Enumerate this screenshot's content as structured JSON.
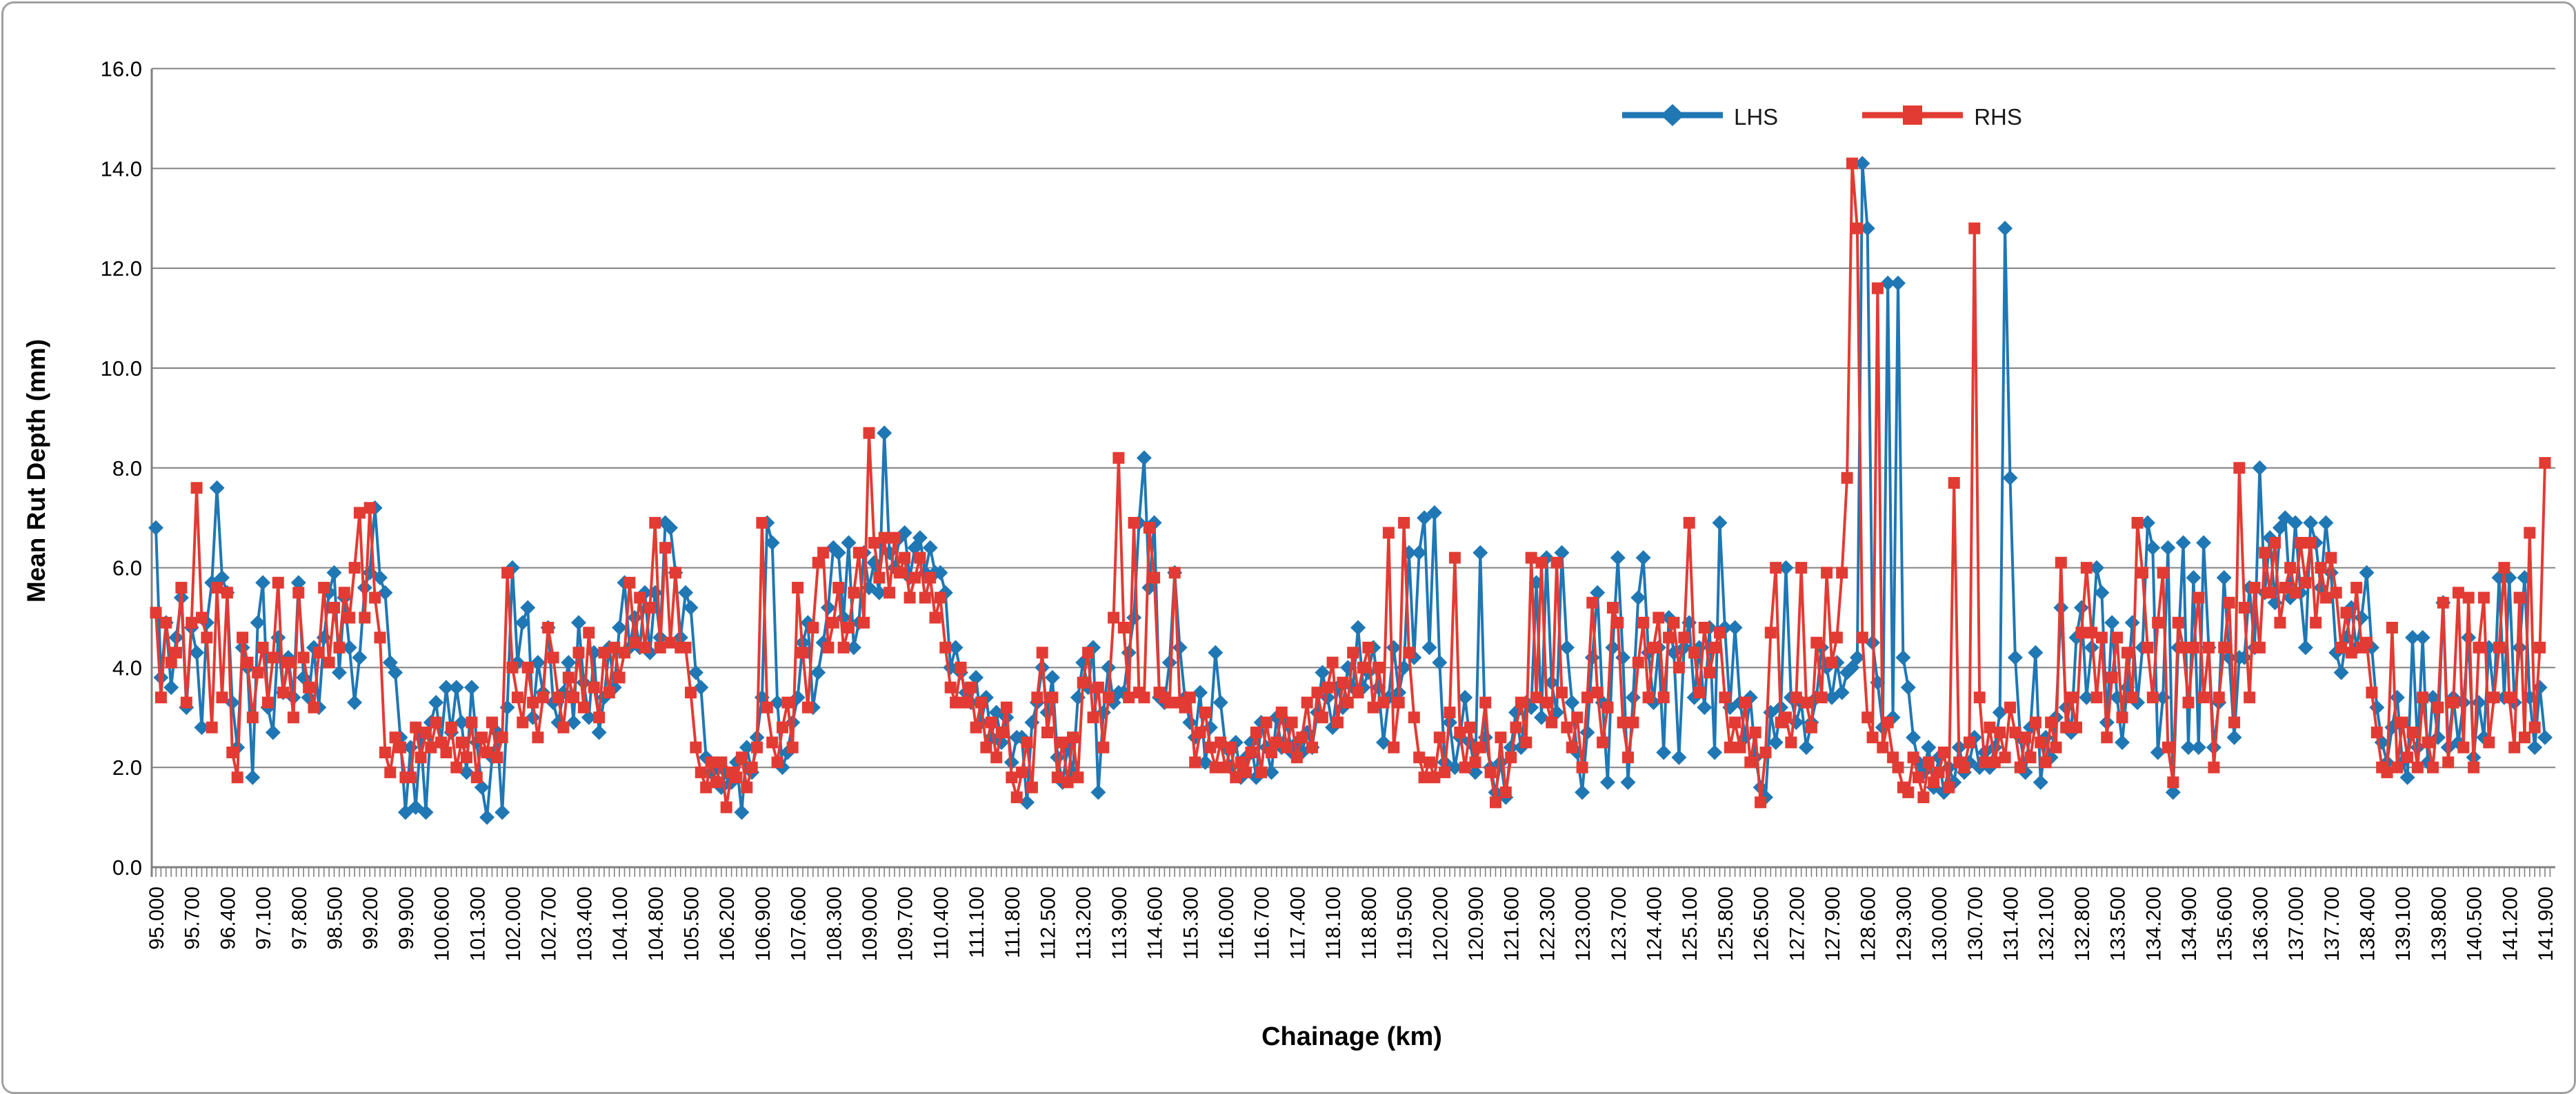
{
  "chart_data": {
    "type": "line",
    "title": "",
    "xlabel": "Chainage (km)",
    "ylabel": "Mean Rut Depth (mm)",
    "x_start": 95.0,
    "x_step": 0.1,
    "n_points": 470,
    "xlim": [
      95.0,
      141.9
    ],
    "ylim": [
      0.0,
      16.0
    ],
    "grid": "horizontal",
    "legend_position": "top-center",
    "y_tick_labels": [
      "0.0",
      "2.0",
      "4.0",
      "6.0",
      "8.0",
      "10.0",
      "12.0",
      "14.0",
      "16.0"
    ],
    "x_tick_labels": [
      "95.000",
      "95.700",
      "96.400",
      "97.100",
      "97.800",
      "98.500",
      "99.200",
      "99.900",
      "100.600",
      "101.300",
      "102.000",
      "102.700",
      "103.400",
      "104.100",
      "104.800",
      "105.500",
      "106.200",
      "106.900",
      "107.600",
      "108.300",
      "109.000",
      "109.700",
      "110.400",
      "111.100",
      "111.800",
      "112.500",
      "113.200",
      "113.900",
      "114.600",
      "115.300",
      "116.000",
      "116.700",
      "117.400",
      "118.100",
      "118.800",
      "119.500",
      "120.200",
      "120.900",
      "121.600",
      "122.300",
      "123.000",
      "123.700",
      "124.400",
      "125.100",
      "125.800",
      "126.500",
      "127.200",
      "127.900",
      "128.600",
      "129.300",
      "130.000",
      "130.700",
      "131.400",
      "132.100",
      "132.800",
      "133.500",
      "134.200",
      "134.900",
      "135.600",
      "136.300",
      "137.000",
      "137.700",
      "138.400",
      "139.100",
      "139.800",
      "140.500",
      "141.200",
      "141.900"
    ],
    "series": [
      {
        "name": "LHS",
        "color": "#1F77B4",
        "marker": "diamond",
        "values": [
          6.8,
          3.8,
          4.9,
          3.6,
          4.6,
          5.4,
          3.2,
          4.8,
          4.3,
          2.8,
          4.9,
          5.7,
          7.6,
          5.8,
          5.5,
          3.3,
          2.4,
          4.4,
          4.0,
          1.8,
          4.9,
          5.7,
          3.2,
          2.7,
          4.6,
          3.5,
          4.2,
          3.4,
          5.7,
          3.8,
          3.4,
          4.4,
          3.2,
          4.6,
          5.5,
          5.9,
          3.9,
          5.4,
          4.4,
          3.3,
          4.2,
          5.6,
          5.9,
          7.2,
          5.8,
          5.5,
          4.1,
          3.9,
          2.6,
          1.1,
          2.4,
          1.2,
          2.6,
          1.1,
          2.9,
          3.3,
          2.5,
          3.6,
          2.7,
          3.6,
          2.9,
          1.9,
          3.6,
          2.5,
          1.6,
          1.0,
          2.2,
          2.7,
          1.1,
          3.2,
          6.0,
          4.1,
          4.9,
          5.2,
          3.0,
          4.1,
          3.5,
          4.8,
          3.3,
          2.9,
          3.5,
          4.1,
          2.9,
          4.9,
          3.7,
          3.0,
          4.3,
          2.7,
          3.4,
          4.4,
          3.6,
          4.8,
          5.7,
          4.4,
          5.0,
          4.4,
          5.5,
          4.3,
          5.5,
          4.6,
          6.9,
          6.8,
          5.9,
          4.6,
          5.5,
          5.2,
          3.9,
          3.6,
          2.2,
          1.9,
          2.0,
          1.6,
          1.9,
          1.7,
          2.1,
          1.1,
          2.4,
          1.9,
          2.6,
          3.4,
          6.9,
          6.5,
          3.3,
          2.0,
          2.3,
          2.9,
          3.4,
          4.5,
          4.9,
          3.2,
          3.9,
          4.5,
          5.2,
          6.4,
          6.3,
          5.0,
          6.5,
          4.4,
          4.9,
          6.3,
          5.6,
          6.1,
          5.5,
          8.7,
          6.3,
          6.0,
          6.6,
          6.7,
          5.8,
          6.4,
          6.6,
          5.9,
          6.4,
          5.9,
          5.9,
          5.5,
          4.0,
          4.4,
          3.9,
          3.5,
          3.3,
          3.8,
          2.9,
          3.4,
          2.6,
          3.1,
          2.5,
          3.0,
          2.1,
          2.6,
          2.6,
          1.3,
          2.9,
          3.3,
          4.0,
          3.1,
          3.8,
          2.2,
          1.7,
          2.4,
          1.9,
          3.4,
          4.1,
          3.6,
          4.4,
          1.5,
          3.1,
          4.0,
          3.3,
          3.5,
          3.5,
          4.3,
          5.0,
          6.9,
          8.2,
          5.6,
          6.9,
          3.4,
          3.3,
          4.1,
          5.9,
          4.4,
          3.4,
          2.9,
          2.6,
          3.5,
          2.1,
          2.8,
          4.3,
          3.3,
          2.4,
          2.0,
          2.5,
          1.8,
          2.2,
          2.5,
          1.8,
          2.9,
          2.4,
          1.9,
          3.0,
          2.4,
          2.9,
          2.3,
          2.5,
          2.3,
          2.7,
          2.4,
          3.1,
          3.9,
          3.4,
          2.8,
          3.6,
          3.2,
          4.0,
          3.6,
          4.8,
          3.6,
          3.9,
          4.4,
          3.6,
          2.5,
          3.4,
          4.4,
          3.5,
          4.0,
          6.3,
          4.2,
          6.3,
          7.0,
          4.4,
          7.1,
          4.1,
          2.1,
          2.9,
          2.0,
          2.6,
          3.4,
          2.5,
          1.9,
          6.3,
          2.6,
          2.0,
          1.5,
          2.1,
          1.4,
          2.4,
          3.1,
          2.4,
          3.3,
          3.2,
          5.7,
          3.0,
          6.2,
          3.7,
          3.1,
          6.3,
          4.4,
          3.3,
          2.3,
          1.5,
          2.7,
          4.2,
          5.5,
          3.3,
          1.7,
          4.4,
          6.2,
          4.2,
          1.7,
          3.4,
          5.4,
          6.2,
          4.3,
          3.3,
          4.4,
          2.3,
          5.0,
          4.3,
          2.2,
          4.4,
          4.9,
          3.4,
          4.4,
          3.2,
          4.8,
          2.3,
          6.9,
          4.8,
          3.2,
          4.8,
          3.3,
          2.6,
          3.4,
          2.2,
          1.6,
          1.4,
          3.1,
          2.5,
          3.2,
          6.0,
          3.4,
          2.9,
          3.3,
          2.4,
          2.9,
          3.4,
          4.4,
          4.0,
          3.4,
          4.1,
          3.5,
          3.9,
          4.0,
          4.2,
          14.1,
          12.8,
          4.5,
          3.7,
          2.8,
          11.7,
          3.0,
          11.7,
          4.2,
          3.6,
          2.6,
          2.1,
          1.9,
          2.4,
          1.6,
          2.2,
          1.5,
          2.0,
          1.7,
          2.4,
          1.9,
          2.1,
          2.6,
          2.0,
          2.3,
          2.0,
          2.4,
          3.1,
          12.8,
          7.8,
          4.2,
          2.6,
          1.9,
          2.8,
          4.3,
          1.7,
          2.6,
          2.2,
          3.0,
          5.2,
          3.2,
          2.7,
          4.6,
          5.2,
          3.4,
          4.4,
          6.0,
          5.5,
          2.9,
          4.9,
          3.4,
          2.5,
          3.6,
          4.9,
          3.3,
          4.4,
          6.9,
          6.4,
          2.3,
          3.4,
          6.4,
          1.5,
          4.4,
          6.5,
          2.4,
          5.8,
          2.4,
          6.5,
          4.4,
          2.4,
          3.3,
          5.8,
          4.2,
          2.6,
          4.2,
          4.2,
          5.6,
          4.4,
          8.0,
          5.5,
          6.6,
          5.3,
          6.8,
          7.0,
          5.4,
          6.9,
          5.5,
          4.4,
          6.9,
          6.5,
          5.6,
          6.9,
          5.9,
          4.3,
          3.9,
          4.6,
          5.2,
          4.4,
          5.0,
          5.9,
          4.4,
          3.2,
          2.5,
          2.1,
          2.8,
          3.4,
          2.1,
          1.8,
          4.6,
          2.4,
          4.6,
          2.1,
          3.4,
          2.6,
          5.3,
          2.4,
          3.4,
          2.5,
          3.3,
          4.6,
          2.2,
          3.3,
          2.6,
          4.4,
          3.4,
          5.8,
          3.4,
          5.8,
          3.3,
          4.4,
          5.8,
          3.4,
          2.4,
          3.6,
          2.6
        ]
      },
      {
        "name": "RHS",
        "color": "#E23B33",
        "marker": "square",
        "values": [
          5.1,
          3.4,
          4.9,
          4.1,
          4.3,
          5.6,
          3.3,
          4.9,
          7.6,
          5.0,
          4.6,
          2.8,
          5.6,
          3.4,
          5.5,
          2.3,
          1.8,
          4.6,
          4.1,
          3.0,
          3.9,
          4.4,
          3.3,
          4.2,
          5.7,
          3.5,
          4.1,
          3.0,
          5.5,
          4.2,
          3.6,
          3.2,
          4.3,
          5.6,
          4.1,
          5.2,
          4.4,
          5.5,
          5.0,
          6.0,
          7.1,
          5.0,
          7.2,
          5.4,
          4.6,
          2.3,
          1.9,
          2.6,
          2.4,
          1.8,
          1.8,
          2.8,
          2.2,
          2.7,
          2.4,
          2.9,
          2.5,
          2.3,
          2.8,
          2.0,
          2.5,
          2.2,
          2.9,
          1.8,
          2.6,
          2.3,
          2.9,
          2.2,
          2.6,
          5.9,
          4.0,
          3.4,
          2.9,
          4.0,
          3.3,
          2.6,
          3.4,
          4.8,
          4.2,
          3.4,
          2.8,
          3.8,
          3.4,
          4.3,
          3.2,
          4.7,
          3.6,
          3.0,
          4.3,
          3.5,
          4.4,
          3.8,
          4.3,
          5.7,
          4.5,
          5.4,
          4.4,
          5.2,
          6.9,
          4.4,
          6.4,
          4.5,
          5.9,
          4.4,
          4.4,
          3.5,
          2.4,
          1.9,
          1.6,
          2.1,
          1.7,
          2.1,
          1.2,
          1.9,
          1.8,
          2.2,
          1.6,
          2.0,
          2.4,
          6.9,
          3.2,
          2.5,
          2.1,
          2.8,
          3.3,
          2.4,
          5.6,
          4.3,
          3.2,
          4.8,
          6.1,
          6.3,
          4.4,
          4.9,
          5.6,
          4.4,
          4.8,
          5.5,
          6.3,
          4.9,
          8.7,
          6.5,
          5.8,
          6.6,
          5.5,
          6.6,
          5.9,
          6.2,
          5.4,
          5.8,
          6.2,
          5.4,
          5.8,
          5.0,
          5.4,
          4.4,
          3.6,
          3.3,
          4.0,
          3.3,
          3.6,
          2.8,
          3.3,
          2.4,
          2.9,
          2.2,
          2.7,
          3.2,
          1.8,
          1.4,
          1.9,
          2.5,
          1.6,
          3.4,
          4.3,
          2.7,
          3.4,
          1.8,
          2.5,
          1.7,
          2.6,
          1.8,
          3.7,
          4.3,
          3.0,
          3.6,
          2.4,
          3.4,
          5.0,
          8.2,
          4.8,
          3.4,
          6.9,
          3.5,
          3.4,
          6.8,
          5.8,
          3.5,
          3.4,
          3.3,
          5.9,
          3.3,
          3.2,
          3.4,
          2.1,
          2.7,
          3.1,
          2.4,
          2.0,
          2.5,
          2.0,
          2.4,
          1.8,
          2.1,
          1.9,
          2.3,
          2.7,
          1.9,
          2.9,
          2.3,
          2.5,
          3.1,
          2.4,
          2.9,
          2.2,
          2.6,
          3.3,
          2.4,
          3.5,
          3.0,
          3.6,
          4.1,
          2.9,
          3.7,
          3.3,
          4.3,
          3.5,
          4.0,
          4.4,
          3.2,
          4.0,
          3.3,
          6.7,
          2.4,
          3.3,
          6.9,
          4.3,
          3.0,
          2.2,
          1.8,
          2.1,
          1.8,
          2.6,
          1.9,
          3.1,
          6.2,
          2.7,
          2.0,
          2.8,
          2.1,
          2.4,
          3.3,
          1.9,
          1.3,
          2.6,
          1.5,
          2.2,
          2.8,
          3.3,
          2.5,
          6.2,
          3.4,
          6.1,
          3.3,
          2.9,
          6.1,
          3.5,
          2.8,
          2.4,
          3.0,
          2.0,
          3.4,
          5.3,
          3.5,
          2.5,
          3.2,
          5.2,
          4.9,
          2.9,
          2.2,
          2.9,
          4.1,
          4.9,
          3.4,
          4.4,
          5.0,
          3.4,
          4.6,
          4.9,
          4.0,
          4.6,
          6.9,
          4.3,
          3.5,
          4.8,
          3.9,
          4.4,
          4.7,
          3.4,
          2.4,
          2.9,
          2.4,
          3.3,
          2.1,
          2.7,
          1.3,
          2.3,
          4.7,
          6.0,
          2.9,
          3.0,
          2.5,
          3.4,
          6.0,
          3.3,
          2.8,
          4.5,
          3.4,
          5.9,
          4.1,
          4.6,
          5.9,
          7.8,
          14.1,
          12.8,
          4.6,
          3.0,
          2.6,
          11.6,
          2.4,
          2.9,
          2.2,
          2.0,
          1.6,
          1.5,
          2.2,
          1.8,
          1.4,
          2.1,
          1.7,
          1.9,
          2.3,
          1.6,
          7.7,
          2.1,
          2.0,
          2.5,
          12.8,
          3.4,
          2.1,
          2.8,
          2.1,
          2.7,
          2.2,
          3.2,
          2.7,
          2.0,
          2.6,
          2.2,
          2.9,
          2.5,
          2.1,
          2.9,
          2.4,
          6.1,
          2.8,
          3.4,
          2.8,
          4.7,
          6.0,
          4.7,
          3.4,
          4.6,
          2.6,
          3.8,
          4.6,
          3.0,
          4.3,
          3.4,
          6.9,
          5.9,
          4.4,
          3.4,
          4.9,
          5.9,
          2.4,
          1.7,
          4.9,
          4.4,
          3.3,
          4.4,
          5.4,
          3.4,
          4.4,
          2.0,
          3.4,
          4.4,
          5.3,
          2.9,
          8.0,
          5.2,
          3.4,
          5.6,
          4.4,
          6.3,
          5.5,
          6.5,
          4.9,
          5.6,
          6.0,
          5.5,
          6.5,
          5.7,
          6.5,
          4.9,
          6.0,
          5.4,
          6.2,
          5.5,
          4.4,
          5.1,
          4.3,
          5.6,
          4.4,
          4.5,
          3.5,
          2.7,
          2.0,
          1.9,
          4.8,
          2.0,
          2.9,
          2.2,
          2.7,
          2.0,
          3.4,
          2.5,
          2.0,
          3.2,
          5.3,
          2.1,
          3.3,
          5.5,
          2.4,
          5.4,
          2.0,
          4.4,
          5.4,
          2.5,
          3.4,
          4.4,
          6.0,
          3.4,
          2.4,
          5.4,
          2.6,
          6.7,
          2.8,
          4.4,
          8.1
        ]
      }
    ]
  },
  "axes": {
    "x_title": "Chainage (km)",
    "y_title": "Mean Rut Depth (mm)"
  },
  "legend": {
    "lhs_label": "LHS",
    "rhs_label": "RHS"
  },
  "colors": {
    "lhs": "#1F77B4",
    "rhs": "#E23B33",
    "grid": "#808080",
    "axis": "#808080",
    "text": "#000000",
    "frame_border": "#A0A0A0"
  }
}
